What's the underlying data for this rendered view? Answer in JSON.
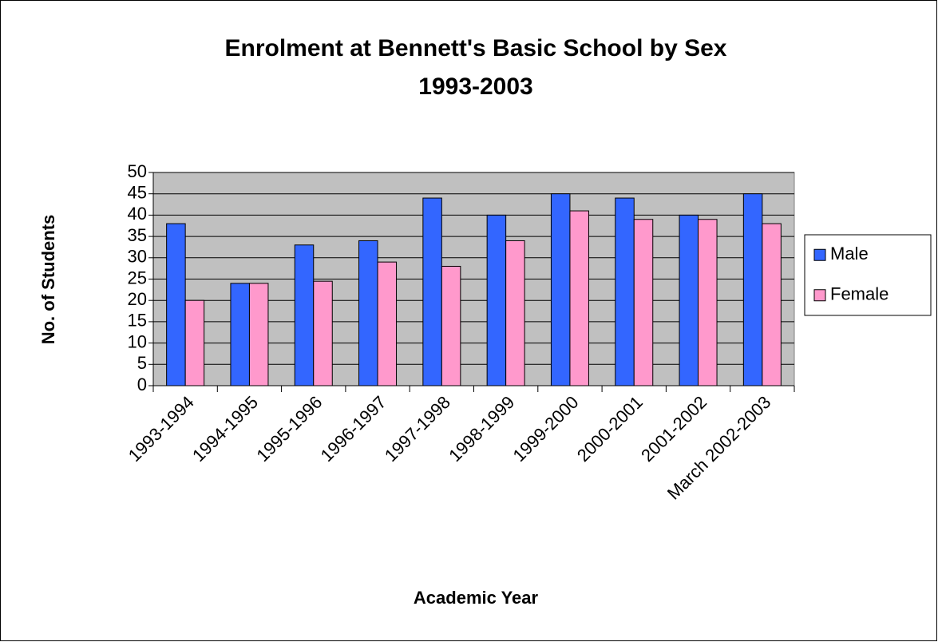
{
  "chart_data": {
    "type": "bar",
    "title": [
      "Enrolment at Bennett's Basic School by Sex",
      "1993-2003"
    ],
    "y_label": "No. of Students",
    "x_label": "Academic Year",
    "categories": [
      "1993-1994",
      "1994-1995",
      "1995-1996",
      "1996-1997",
      "1997-1998",
      "1998-1999",
      "1999-2000",
      "2000-2001",
      "2001-2002",
      "March 2002-2003"
    ],
    "series": [
      {
        "name": "Male",
        "color": "#3366ff",
        "values": [
          38,
          24,
          33,
          34,
          44,
          40,
          45,
          44,
          40,
          45
        ]
      },
      {
        "name": "Female",
        "color": "#ff99cc",
        "values": [
          20,
          24,
          24.5,
          29,
          28,
          34,
          41,
          39,
          39,
          38
        ]
      }
    ],
    "ylim": [
      0,
      50
    ],
    "yticks": [
      0,
      5,
      10,
      15,
      20,
      25,
      30,
      35,
      40,
      45,
      50
    ],
    "grid": true,
    "legend": "right"
  }
}
